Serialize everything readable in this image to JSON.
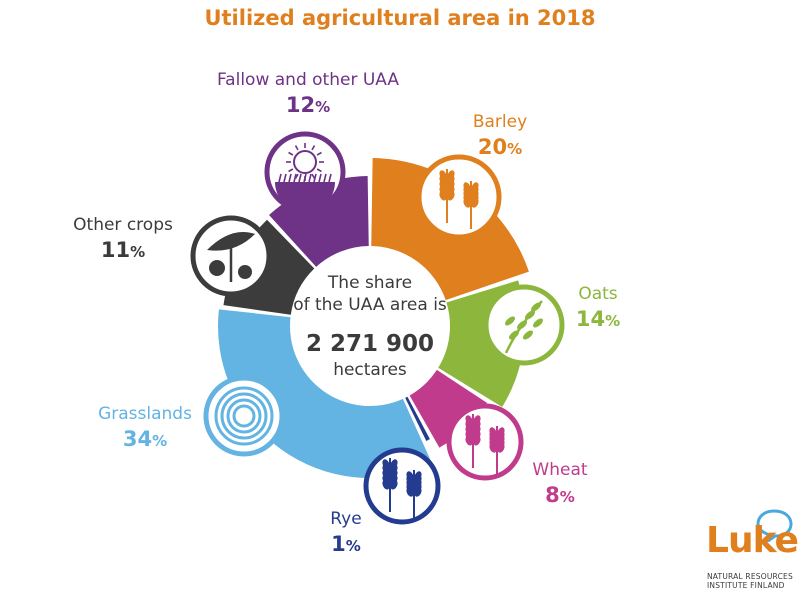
{
  "chart_data": {
    "type": "pie",
    "title": "Utilized agricultural area in 2018",
    "center": {
      "line1": "The share",
      "line2": "of the UAA area is",
      "total": "2 271 900",
      "unit": "hectares"
    },
    "slices": [
      {
        "key": "barley",
        "name": "Barley",
        "value": 20,
        "color": "#e07f1e",
        "icon": "barley-icon"
      },
      {
        "key": "oats",
        "name": "Oats",
        "value": 14,
        "color": "#8cb63c",
        "icon": "oats-icon"
      },
      {
        "key": "wheat",
        "name": "Wheat",
        "value": 8,
        "color": "#c13b8d",
        "icon": "wheat-icon"
      },
      {
        "key": "rye",
        "name": "Rye",
        "value": 1,
        "color": "#243c8f",
        "icon": "rye-icon"
      },
      {
        "key": "grasslands",
        "name": "Grasslands",
        "value": 34,
        "color": "#63b3e3",
        "icon": "hay-bale-icon"
      },
      {
        "key": "other-crops",
        "name": "Other crops",
        "value": 11,
        "color": "#3c3c3c",
        "icon": "other-crops-icon"
      },
      {
        "key": "fallow",
        "name": "Fallow and other UAA",
        "value": 12,
        "color": "#6e3286",
        "icon": "fallow-sun-icon"
      }
    ],
    "percent_sign": "%"
  },
  "logo": {
    "name": "Luke",
    "line1": "NATURAL RESOURCES",
    "line2": "INSTITUTE FINLAND"
  }
}
